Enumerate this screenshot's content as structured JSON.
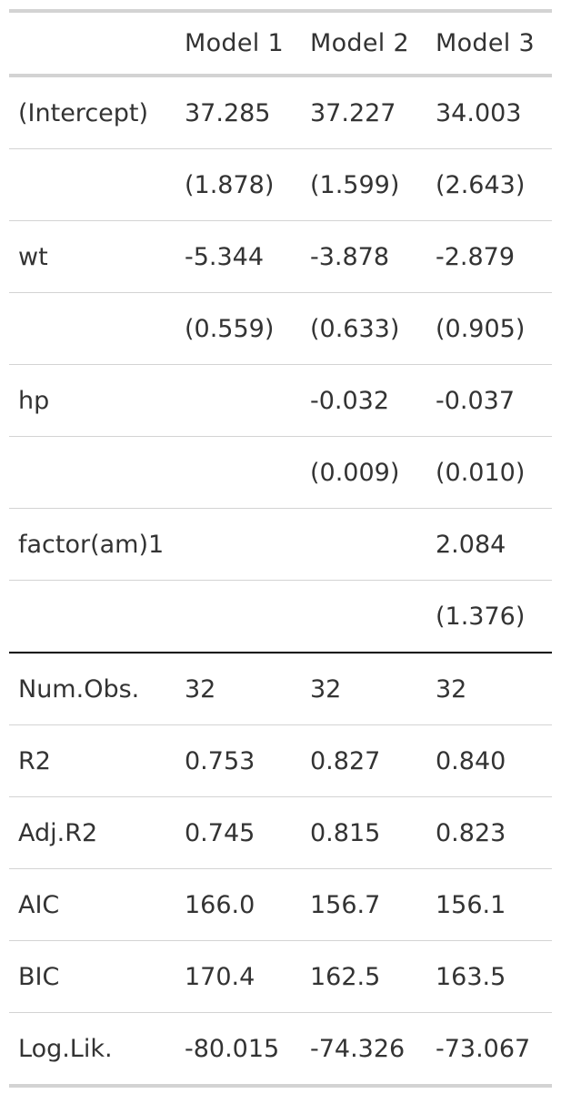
{
  "table": {
    "headers": [
      "",
      "Model 1",
      "Model 2",
      "Model 3"
    ],
    "coefficient_rows": [
      [
        "(Intercept)",
        "37.285",
        "37.227",
        "34.003"
      ],
      [
        "",
        "(1.878)",
        "(1.599)",
        "(2.643)"
      ],
      [
        "wt",
        "-5.344",
        "-3.878",
        "-2.879"
      ],
      [
        "",
        "(0.559)",
        "(0.633)",
        "(0.905)"
      ],
      [
        "hp",
        "",
        "-0.032",
        "-0.037"
      ],
      [
        "",
        "",
        "(0.009)",
        "(0.010)"
      ],
      [
        "factor(am)1",
        "",
        "",
        "2.084"
      ],
      [
        "",
        "",
        "",
        "(1.376)"
      ]
    ],
    "gof_rows": [
      [
        "Num.Obs.",
        "32",
        "32",
        "32"
      ],
      [
        "R2",
        "0.753",
        "0.827",
        "0.840"
      ],
      [
        "Adj.R2",
        "0.745",
        "0.815",
        "0.823"
      ],
      [
        "AIC",
        "166.0",
        "156.7",
        "156.1"
      ],
      [
        "BIC",
        "170.4",
        "162.5",
        "163.5"
      ],
      [
        "Log.Lik.",
        "-80.015",
        "-74.326",
        "-73.067"
      ]
    ]
  }
}
